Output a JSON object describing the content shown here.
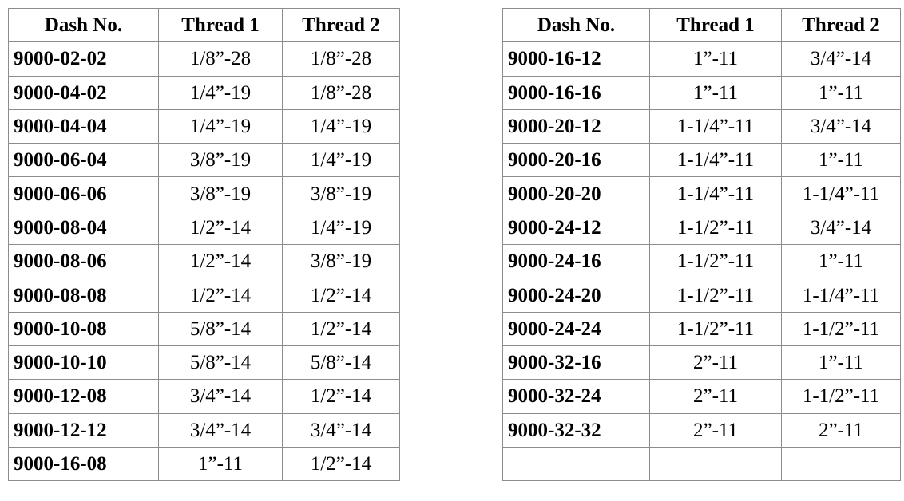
{
  "headers": {
    "dash": "Dash No.",
    "thread1": "Thread 1",
    "thread2": "Thread 2"
  },
  "left_table": [
    {
      "dash": "9000-02-02",
      "thread1": "1/8”-28",
      "thread2": "1/8”-28"
    },
    {
      "dash": "9000-04-02",
      "thread1": "1/4”-19",
      "thread2": "1/8”-28"
    },
    {
      "dash": "9000-04-04",
      "thread1": "1/4”-19",
      "thread2": "1/4”-19"
    },
    {
      "dash": "9000-06-04",
      "thread1": "3/8”-19",
      "thread2": "1/4”-19"
    },
    {
      "dash": "9000-06-06",
      "thread1": "3/8”-19",
      "thread2": "3/8”-19"
    },
    {
      "dash": "9000-08-04",
      "thread1": "1/2”-14",
      "thread2": "1/4”-19"
    },
    {
      "dash": "9000-08-06",
      "thread1": "1/2”-14",
      "thread2": "3/8”-19"
    },
    {
      "dash": "9000-08-08",
      "thread1": "1/2”-14",
      "thread2": "1/2”-14"
    },
    {
      "dash": "9000-10-08",
      "thread1": "5/8”-14",
      "thread2": "1/2”-14"
    },
    {
      "dash": "9000-10-10",
      "thread1": "5/8”-14",
      "thread2": "5/8”-14"
    },
    {
      "dash": "9000-12-08",
      "thread1": "3/4”-14",
      "thread2": "1/2”-14"
    },
    {
      "dash": "9000-12-12",
      "thread1": "3/4”-14",
      "thread2": "3/4”-14"
    },
    {
      "dash": "9000-16-08",
      "thread1": "1”-11",
      "thread2": "1/2”-14"
    }
  ],
  "right_table": [
    {
      "dash": "9000-16-12",
      "thread1": "1”-11",
      "thread2": "3/4”-14"
    },
    {
      "dash": "9000-16-16",
      "thread1": "1”-11",
      "thread2": "1”-11"
    },
    {
      "dash": "9000-20-12",
      "thread1": "1-1/4”-11",
      "thread2": "3/4”-14"
    },
    {
      "dash": "9000-20-16",
      "thread1": "1-1/4”-11",
      "thread2": "1”-11"
    },
    {
      "dash": "9000-20-20",
      "thread1": "1-1/4”-11",
      "thread2": "1-1/4”-11"
    },
    {
      "dash": "9000-24-12",
      "thread1": "1-1/2”-11",
      "thread2": "3/4”-14"
    },
    {
      "dash": "9000-24-16",
      "thread1": "1-1/2”-11",
      "thread2": "1”-11"
    },
    {
      "dash": "9000-24-20",
      "thread1": "1-1/2”-11",
      "thread2": "1-1/4”-11"
    },
    {
      "dash": "9000-24-24",
      "thread1": "1-1/2”-11",
      "thread2": "1-1/2”-11"
    },
    {
      "dash": "9000-32-16",
      "thread1": "2”-11",
      "thread2": "1”-11"
    },
    {
      "dash": "9000-32-24",
      "thread1": "2”-11",
      "thread2": "1-1/2”-11"
    },
    {
      "dash": "9000-32-32",
      "thread1": "2”-11",
      "thread2": "2”-11"
    },
    {
      "dash": "",
      "thread1": "",
      "thread2": ""
    }
  ]
}
